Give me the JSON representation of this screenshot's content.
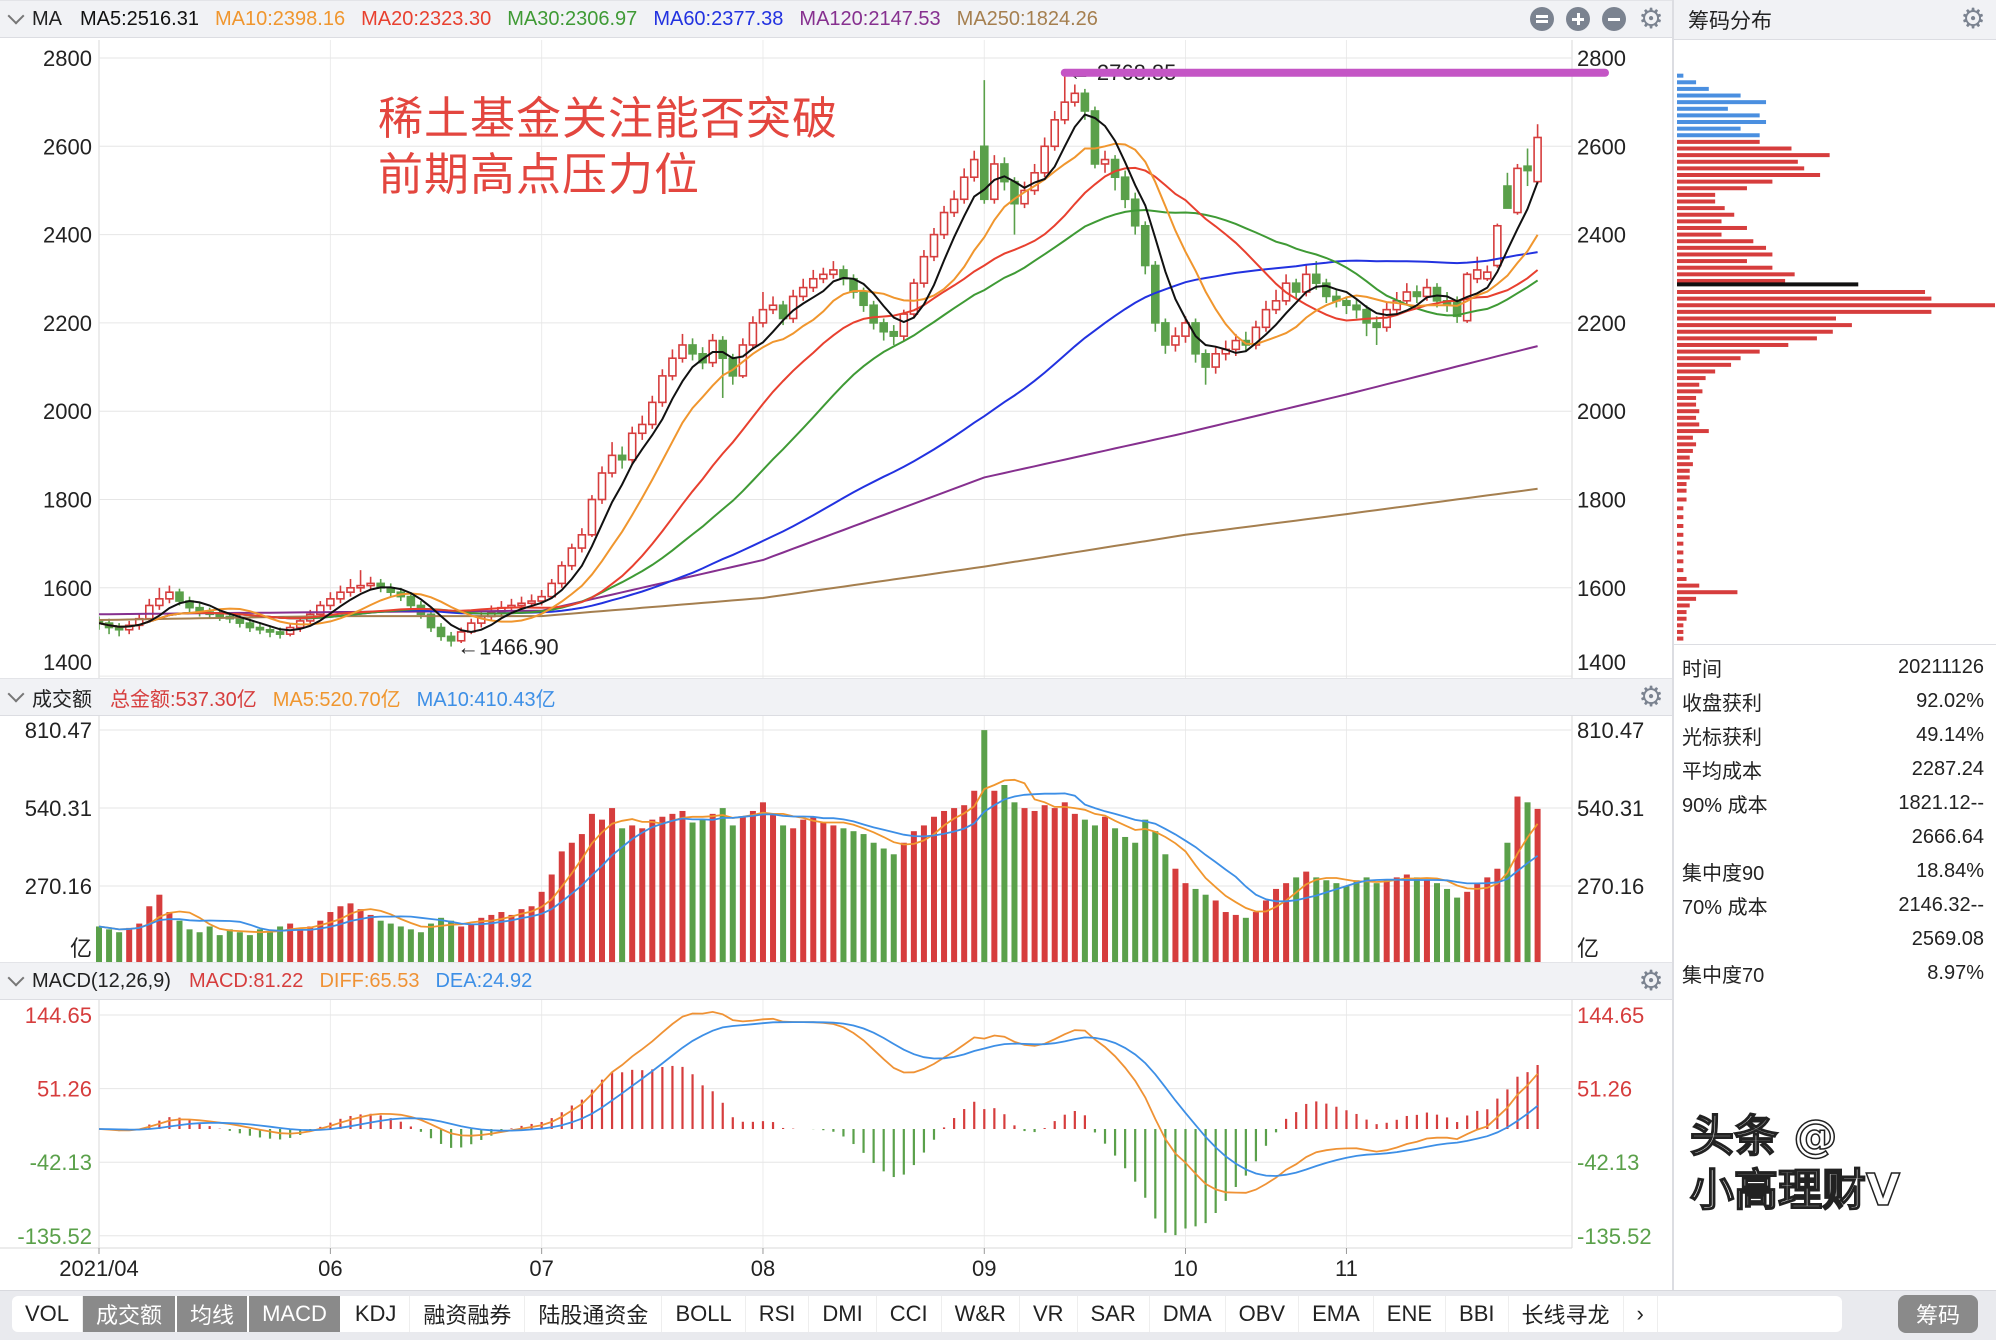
{
  "header": {
    "title": "MA",
    "legend": [
      {
        "label": "MA5:2516.31",
        "color": "#111111"
      },
      {
        "label": "MA10:2398.16",
        "color": "#f0962e"
      },
      {
        "label": "MA20:2323.30",
        "color": "#e8402f"
      },
      {
        "label": "MA30:2306.97",
        "color": "#3f9a35"
      },
      {
        "label": "MA60:2377.38",
        "color": "#2232e0"
      },
      {
        "label": "MA120:2147.53",
        "color": "#86308f"
      },
      {
        "label": "MA250:1824.26",
        "color": "#a57f4f"
      }
    ],
    "icons": [
      "collapse-icon",
      "zoom-in-icon",
      "zoom-out-icon",
      "gear-icon"
    ]
  },
  "volume_header": {
    "title": "成交额",
    "legend": [
      {
        "label": "总金额:537.30亿",
        "color": "#d63d3d"
      },
      {
        "label": "MA5:520.70亿",
        "color": "#f0962e"
      },
      {
        "label": "MA10:410.43亿",
        "color": "#3d8fe6"
      }
    ]
  },
  "macd_header": {
    "title": "MACD(12,26,9)",
    "legend": [
      {
        "label": "MACD:81.22",
        "color": "#d63d3d"
      },
      {
        "label": "DIFF:65.53",
        "color": "#ef9235"
      },
      {
        "label": "DEA:24.92",
        "color": "#3d8fe6"
      }
    ]
  },
  "annotation": {
    "line1": "稀土基金关注能否突破",
    "line2": "前期高点压力位"
  },
  "watermark": "头条 @小高理财V",
  "chip_panel": {
    "title": "筹码分布",
    "info": [
      {
        "label": "时间",
        "value": "20211126"
      },
      {
        "label": "收盘获利",
        "value": "92.02%"
      },
      {
        "label": "光标获利",
        "value": "49.14%"
      },
      {
        "label": "平均成本",
        "value": "2287.24"
      },
      {
        "label": "90% 成本",
        "value": "1821.12--"
      },
      {
        "label": "",
        "value": "2666.64"
      },
      {
        "label": "集中度90",
        "value": "18.84%"
      },
      {
        "label": "70% 成本",
        "value": "2146.32--"
      },
      {
        "label": "",
        "value": "2569.08"
      },
      {
        "label": "集中度70",
        "value": "8.97%"
      }
    ]
  },
  "tabs": [
    {
      "label": "VOL",
      "active": false
    },
    {
      "label": "成交额",
      "active": true
    },
    {
      "label": "均线",
      "active": true
    },
    {
      "label": "MACD",
      "active": true
    },
    {
      "label": "KDJ",
      "active": false
    },
    {
      "label": "融资融券",
      "active": false
    },
    {
      "label": "陆股通资金",
      "active": false
    },
    {
      "label": "BOLL",
      "active": false
    },
    {
      "label": "RSI",
      "active": false
    },
    {
      "label": "DMI",
      "active": false
    },
    {
      "label": "CCI",
      "active": false
    },
    {
      "label": "W&R",
      "active": false
    },
    {
      "label": "VR",
      "active": false
    },
    {
      "label": "SAR",
      "active": false
    },
    {
      "label": "DMA",
      "active": false
    },
    {
      "label": "OBV",
      "active": false
    },
    {
      "label": "EMA",
      "active": false
    },
    {
      "label": "ENE",
      "active": false
    },
    {
      "label": "BBI",
      "active": false
    },
    {
      "label": "长线寻龙",
      "active": false
    },
    {
      "label": "›",
      "active": false
    }
  ],
  "chip_button": "筹码",
  "colors": {
    "up": "#d63d3d",
    "down": "#5aa04a",
    "chip_profit": "#d63d3d",
    "chip_loss": "#4a8fe0",
    "resistance_line": "#c455c5"
  },
  "chart_data": {
    "type": "candlestick",
    "x_tick_labels": [
      "2021/04",
      "06",
      "07",
      "08",
      "09",
      "10",
      "11"
    ],
    "price_axis": {
      "ticks": [
        1400,
        1600,
        1800,
        2000,
        2200,
        2400,
        2600,
        2800
      ],
      "range": [
        1400,
        2800
      ]
    },
    "volume_axis": {
      "ticks": [
        "810.47",
        "540.31",
        "270.16"
      ],
      "unit": "亿",
      "range": [
        0,
        810.47
      ]
    },
    "macd_axis": {
      "ticks": [
        "144.65",
        "51.26",
        "-42.13",
        "-135.52"
      ],
      "range": [
        -135.52,
        144.65
      ]
    },
    "high_marker": {
      "label": "← 2768.85",
      "value": 2768.85
    },
    "low_marker": {
      "label": "←1466.90",
      "value": 1466.9
    },
    "open": [
      1525,
      1520,
      1510,
      1505,
      1515,
      1530,
      1560,
      1575,
      1590,
      1570,
      1555,
      1545,
      1540,
      1535,
      1530,
      1520,
      1510,
      1505,
      1500,
      1495,
      1510,
      1525,
      1540,
      1560,
      1575,
      1590,
      1600,
      1605,
      1610,
      1600,
      1590,
      1580,
      1560,
      1540,
      1510,
      1490,
      1480,
      1500,
      1520,
      1535,
      1545,
      1555,
      1560,
      1565,
      1570,
      1580,
      1610,
      1650,
      1690,
      1720,
      1800,
      1860,
      1900,
      1890,
      1950,
      1970,
      2020,
      2080,
      2120,
      2150,
      2130,
      2110,
      2160,
      2120,
      2080,
      2150,
      2200,
      2230,
      2240,
      2210,
      2260,
      2280,
      2300,
      2310,
      2320,
      2300,
      2270,
      2240,
      2200,
      2180,
      2170,
      2220,
      2290,
      2350,
      2400,
      2450,
      2480,
      2530,
      2600,
      2480,
      2560,
      2520,
      2470,
      2500,
      2540,
      2600,
      2660,
      2700,
      2720,
      2680,
      2560,
      2570,
      2530,
      2480,
      2420,
      2330,
      2200,
      2150,
      2170,
      2200,
      2130,
      2100,
      2130,
      2140,
      2160,
      2150,
      2190,
      2230,
      2250,
      2290,
      2270,
      2310,
      2290,
      2260,
      2250,
      2240,
      2230,
      2200,
      2190,
      2230,
      2250,
      2270,
      2260,
      2280,
      2250,
      2250,
      2205,
      2300,
      2300,
      2330,
      2510,
      2450,
      2555,
      2520
    ],
    "high": [
      1535,
      1530,
      1520,
      1525,
      1540,
      1575,
      1600,
      1605,
      1598,
      1580,
      1565,
      1555,
      1550,
      1545,
      1540,
      1530,
      1520,
      1515,
      1510,
      1520,
      1535,
      1550,
      1570,
      1590,
      1605,
      1620,
      1640,
      1625,
      1620,
      1610,
      1600,
      1590,
      1570,
      1545,
      1520,
      1500,
      1510,
      1530,
      1545,
      1560,
      1570,
      1575,
      1580,
      1585,
      1595,
      1620,
      1660,
      1700,
      1735,
      1810,
      1875,
      1930,
      1920,
      1965,
      1990,
      2035,
      2095,
      2140,
      2175,
      2165,
      2145,
      2175,
      2170,
      2130,
      2165,
      2215,
      2270,
      2260,
      2250,
      2275,
      2300,
      2320,
      2325,
      2340,
      2330,
      2310,
      2280,
      2250,
      2210,
      2195,
      2230,
      2300,
      2365,
      2415,
      2465,
      2500,
      2550,
      2590,
      2750,
      2580,
      2575,
      2530,
      2520,
      2560,
      2620,
      2680,
      2768.85,
      2740,
      2730,
      2690,
      2590,
      2580,
      2545,
      2495,
      2430,
      2340,
      2210,
      2190,
      2215,
      2210,
      2140,
      2145,
      2160,
      2175,
      2180,
      2205,
      2250,
      2275,
      2310,
      2300,
      2330,
      2340,
      2300,
      2275,
      2260,
      2255,
      2240,
      2215,
      2245,
      2270,
      2290,
      2285,
      2300,
      2290,
      2270,
      2260,
      2315,
      2350,
      2330,
      2425,
      2540,
      2560,
      2595,
      2650
    ],
    "low": [
      1505,
      1495,
      1490,
      1495,
      1505,
      1525,
      1550,
      1565,
      1560,
      1545,
      1535,
      1530,
      1525,
      1520,
      1510,
      1500,
      1495,
      1488,
      1485,
      1490,
      1500,
      1515,
      1530,
      1550,
      1565,
      1580,
      1590,
      1595,
      1590,
      1580,
      1570,
      1550,
      1530,
      1500,
      1480,
      1466.9,
      1475,
      1495,
      1510,
      1525,
      1535,
      1545,
      1550,
      1555,
      1560,
      1575,
      1600,
      1640,
      1680,
      1715,
      1790,
      1850,
      1870,
      1880,
      1935,
      1960,
      2010,
      2070,
      2110,
      2115,
      2095,
      2100,
      2030,
      2060,
      2075,
      2140,
      2190,
      2220,
      2195,
      2200,
      2250,
      2270,
      2290,
      2300,
      2285,
      2255,
      2225,
      2185,
      2160,
      2150,
      2160,
      2210,
      2280,
      2340,
      2390,
      2440,
      2470,
      2520,
      2470,
      2470,
      2500,
      2400,
      2460,
      2490,
      2530,
      2590,
      2650,
      2690,
      2660,
      2550,
      2540,
      2500,
      2460,
      2400,
      2310,
      2180,
      2130,
      2135,
      2155,
      2110,
      2060,
      2085,
      2115,
      2125,
      2135,
      2140,
      2180,
      2220,
      2240,
      2255,
      2260,
      2275,
      2245,
      2235,
      2220,
      2210,
      2170,
      2150,
      2180,
      2220,
      2240,
      2245,
      2250,
      2235,
      2225,
      2200,
      2200,
      2290,
      2295,
      2325,
      2460,
      2445,
      2510,
      2515
    ],
    "close": [
      1520,
      1510,
      1505,
      1515,
      1530,
      1560,
      1575,
      1590,
      1570,
      1555,
      1545,
      1540,
      1535,
      1530,
      1520,
      1510,
      1505,
      1500,
      1495,
      1510,
      1525,
      1540,
      1560,
      1575,
      1590,
      1600,
      1605,
      1610,
      1600,
      1590,
      1580,
      1560,
      1540,
      1510,
      1490,
      1480,
      1500,
      1520,
      1535,
      1545,
      1555,
      1560,
      1565,
      1570,
      1580,
      1610,
      1650,
      1690,
      1720,
      1800,
      1860,
      1900,
      1890,
      1950,
      1970,
      2020,
      2080,
      2120,
      2150,
      2130,
      2110,
      2160,
      2120,
      2080,
      2150,
      2200,
      2230,
      2240,
      2210,
      2260,
      2280,
      2300,
      2310,
      2320,
      2300,
      2270,
      2240,
      2200,
      2180,
      2170,
      2220,
      2290,
      2350,
      2400,
      2450,
      2480,
      2530,
      2570,
      2480,
      2560,
      2520,
      2470,
      2500,
      2540,
      2600,
      2660,
      2700,
      2720,
      2680,
      2560,
      2570,
      2530,
      2480,
      2420,
      2330,
      2200,
      2150,
      2170,
      2200,
      2130,
      2100,
      2130,
      2140,
      2160,
      2150,
      2190,
      2230,
      2250,
      2290,
      2270,
      2310,
      2290,
      2260,
      2250,
      2240,
      2230,
      2200,
      2190,
      2230,
      2250,
      2270,
      2260,
      2280,
      2250,
      2240,
      2215,
      2310,
      2320,
      2315,
      2420,
      2460,
      2550,
      2545,
      2620
    ],
    "amount": [
      130,
      120,
      110,
      125,
      140,
      200,
      240,
      180,
      150,
      120,
      110,
      130,
      100,
      120,
      110,
      100,
      120,
      110,
      130,
      140,
      120,
      130,
      150,
      180,
      200,
      210,
      190,
      170,
      150,
      140,
      130,
      120,
      110,
      140,
      160,
      150,
      130,
      140,
      160,
      170,
      180,
      170,
      190,
      200,
      250,
      310,
      390,
      420,
      450,
      520,
      500,
      540,
      470,
      480,
      470,
      500,
      510,
      520,
      530,
      490,
      500,
      520,
      540,
      480,
      510,
      530,
      560,
      520,
      480,
      470,
      500,
      510,
      490,
      480,
      470,
      460,
      450,
      420,
      400,
      380,
      420,
      460,
      480,
      510,
      530,
      540,
      550,
      600,
      810,
      600,
      620,
      560,
      540,
      530,
      550,
      540,
      560,
      520,
      500,
      480,
      510,
      470,
      440,
      420,
      500,
      460,
      380,
      330,
      280,
      260,
      240,
      220,
      180,
      170,
      160,
      180,
      220,
      260,
      280,
      300,
      320,
      300,
      290,
      280,
      270,
      290,
      300,
      280,
      290,
      300,
      310,
      300,
      290,
      280,
      260,
      230,
      250,
      280,
      300,
      330,
      420,
      580,
      560,
      537.3
    ],
    "ma120_at_ticks": [
      1540,
      1545,
      1548,
      1663,
      1850,
      1951,
      2038,
      2147.53
    ],
    "ma250_at_ticks": [
      1527,
      1536,
      1536,
      1577,
      1648,
      1720,
      1767,
      1824.26
    ],
    "chip_average_cost": 2287.24,
    "chips": [
      [
        2760,
        0.02
      ],
      [
        2745,
        0.06
      ],
      [
        2730,
        0.1
      ],
      [
        2715,
        0.2
      ],
      [
        2700,
        0.28
      ],
      [
        2685,
        0.16
      ],
      [
        2670,
        0.26
      ],
      [
        2655,
        0.28
      ],
      [
        2640,
        0.2
      ],
      [
        2625,
        0.26
      ],
      [
        2610,
        0.26
      ],
      [
        2595,
        0.36
      ],
      [
        2580,
        0.48
      ],
      [
        2565,
        0.38
      ],
      [
        2550,
        0.4
      ],
      [
        2535,
        0.45
      ],
      [
        2520,
        0.3
      ],
      [
        2505,
        0.22
      ],
      [
        2490,
        0.12
      ],
      [
        2475,
        0.12
      ],
      [
        2460,
        0.15
      ],
      [
        2445,
        0.18
      ],
      [
        2430,
        0.14
      ],
      [
        2415,
        0.22
      ],
      [
        2400,
        0.14
      ],
      [
        2385,
        0.24
      ],
      [
        2370,
        0.28
      ],
      [
        2355,
        0.3
      ],
      [
        2340,
        0.22
      ],
      [
        2325,
        0.3
      ],
      [
        2310,
        0.37
      ],
      [
        2295,
        0.34
      ],
      [
        2270,
        0.78
      ],
      [
        2255,
        0.8
      ],
      [
        2240,
        1.0
      ],
      [
        2225,
        0.8
      ],
      [
        2210,
        0.5
      ],
      [
        2195,
        0.55
      ],
      [
        2180,
        0.49
      ],
      [
        2165,
        0.44
      ],
      [
        2150,
        0.35
      ],
      [
        2135,
        0.26
      ],
      [
        2120,
        0.2
      ],
      [
        2105,
        0.17
      ],
      [
        2090,
        0.12
      ],
      [
        2075,
        0.09
      ],
      [
        2060,
        0.07
      ],
      [
        2045,
        0.08
      ],
      [
        2030,
        0.06
      ],
      [
        2015,
        0.06
      ],
      [
        2000,
        0.07
      ],
      [
        1985,
        0.06
      ],
      [
        1970,
        0.07
      ],
      [
        1955,
        0.1
      ],
      [
        1940,
        0.05
      ],
      [
        1925,
        0.06
      ],
      [
        1910,
        0.05
      ],
      [
        1895,
        0.04
      ],
      [
        1880,
        0.05
      ],
      [
        1865,
        0.04
      ],
      [
        1850,
        0.04
      ],
      [
        1835,
        0.03
      ],
      [
        1820,
        0.03
      ],
      [
        1800,
        0.03
      ],
      [
        1780,
        0.02
      ],
      [
        1760,
        0.02
      ],
      [
        1740,
        0.02
      ],
      [
        1720,
        0.02
      ],
      [
        1700,
        0.02
      ],
      [
        1680,
        0.02
      ],
      [
        1660,
        0.02
      ],
      [
        1640,
        0.02
      ],
      [
        1620,
        0.03
      ],
      [
        1605,
        0.07
      ],
      [
        1590,
        0.19
      ],
      [
        1575,
        0.06
      ],
      [
        1560,
        0.04
      ],
      [
        1545,
        0.03
      ],
      [
        1530,
        0.03
      ],
      [
        1515,
        0.02
      ],
      [
        1500,
        0.02
      ],
      [
        1485,
        0.02
      ]
    ]
  }
}
